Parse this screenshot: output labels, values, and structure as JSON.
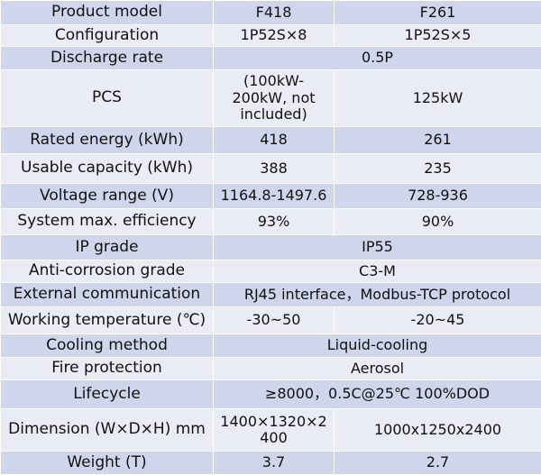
{
  "table": {
    "rows": [
      [
        "Product model",
        "F418",
        "F261"
      ],
      [
        "Configuration",
        "1P52S×8",
        "1P52S×5"
      ],
      [
        "Discharge rate",
        "0.5P"
      ],
      [
        "PCS",
        "(100kW-200kW, not included)",
        "125kW"
      ],
      [
        "Rated energy (kWh)",
        "418",
        "261"
      ],
      [
        "Usable capacity (kWh)",
        "388",
        "235"
      ],
      [
        "Voltage range (V)",
        "1164.8-1497.6",
        "728-936"
      ],
      [
        "System max. efficiency",
        "93%",
        "90%"
      ],
      [
        "IP grade",
        "IP55"
      ],
      [
        "Anti-corrosion grade",
        "C3-M"
      ],
      [
        "External communication",
        "RJ45 interface，Modbus-TCP protocol"
      ],
      [
        "Working temperature (℃)",
        "-30~50",
        "-20~45"
      ],
      [
        "Cooling method",
        "Liquid-cooling"
      ],
      [
        "Fire protection",
        "Aerosol"
      ],
      [
        "Lifecycle",
        "≥8000，0.5C@25℃ 100%DOD"
      ],
      [
        "Dimension (W×D×H) mm",
        "1400×1320×2400",
        "1000x1250x2400"
      ],
      [
        "Weight (T)",
        "3.7",
        "2.7"
      ]
    ]
  }
}
